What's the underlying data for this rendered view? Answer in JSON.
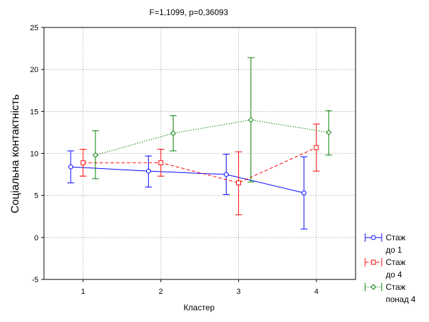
{
  "chart_data": {
    "type": "line",
    "title": "F=1,1099, p=0,36093",
    "xlabel": "Кластер",
    "ylabel": "Соціальна контактність",
    "categories": [
      "1",
      "2",
      "3",
      "4"
    ],
    "ylim": [
      -5,
      25
    ],
    "yticks": [
      "-5",
      "0",
      "5",
      "10",
      "15",
      "20",
      "25"
    ],
    "grid": true,
    "legend_position": "right-bottom",
    "series": [
      {
        "name_lines": [
          "Стаж",
          "до 1"
        ],
        "color": "#0000ff",
        "line_style": "solid",
        "marker": "circle",
        "means": [
          8.4,
          7.9,
          7.5,
          5.3
        ],
        "lower": [
          6.5,
          6.0,
          5.1,
          1.0
        ],
        "upper": [
          10.3,
          9.7,
          9.9,
          9.6
        ]
      },
      {
        "name_lines": [
          "Стаж",
          "до 4"
        ],
        "color": "#ff0000",
        "line_style": "dashed",
        "marker": "square",
        "means": [
          8.9,
          8.9,
          6.5,
          10.7
        ],
        "lower": [
          7.3,
          7.3,
          2.7,
          7.9
        ],
        "upper": [
          10.5,
          10.5,
          10.2,
          13.5
        ]
      },
      {
        "name_lines": [
          "Стаж",
          "понад 4"
        ],
        "color": "#008000",
        "line_style": "dotted",
        "marker": "diamond",
        "means": [
          9.8,
          12.4,
          14.0,
          12.5
        ],
        "lower": [
          7.0,
          10.3,
          6.6,
          9.8
        ],
        "upper": [
          12.7,
          14.5,
          21.4,
          15.1
        ]
      }
    ]
  }
}
